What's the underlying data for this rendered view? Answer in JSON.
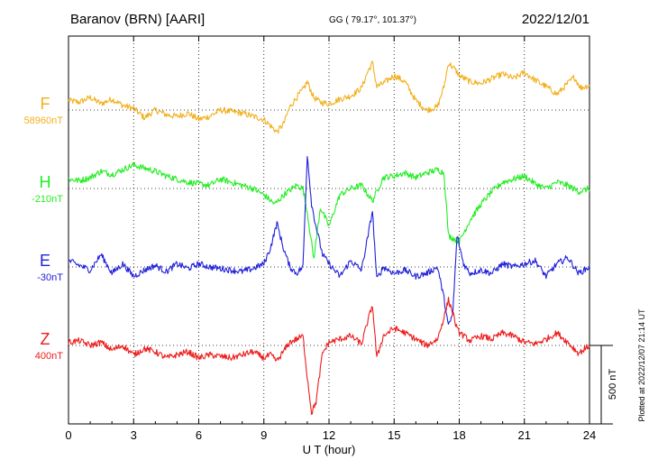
{
  "header": {
    "station": "Baranov (BRN)  [AARI]",
    "coords": "GG ( 79.17°, 101.37°)",
    "date": "2022/12/01"
  },
  "axis": {
    "xlabel": "U T (hour)",
    "ticks": [
      "0",
      "3",
      "6",
      "9",
      "12",
      "15",
      "18",
      "21",
      "24"
    ]
  },
  "scale_bar": {
    "label": "500 nT",
    "value_nT": 500
  },
  "footer": {
    "plotted": "Plotted at 2022/12/07 21:14 UT"
  },
  "chart_data": {
    "type": "line",
    "title": "Baranov (BRN)  [AARI]",
    "xlabel": "U T (hour)",
    "ylabel": "",
    "xlim": [
      0,
      24
    ],
    "x_ticks": [
      0,
      3,
      6,
      9,
      12,
      15,
      18,
      21,
      24
    ],
    "grid": true,
    "scale_bar_nT": 500,
    "series": [
      {
        "name": "F",
        "baseline_label": "58960nT",
        "color": "#f2b01e",
        "x": [
          0,
          0.5,
          1,
          1.5,
          2,
          2.5,
          3,
          3.5,
          4,
          4.5,
          5,
          5.5,
          6,
          6.5,
          7,
          7.5,
          8,
          8.5,
          9,
          9.3,
          9.6,
          9.9,
          10.2,
          10.5,
          10.8,
          11,
          11.3,
          11.6,
          12,
          12.5,
          13,
          13.5,
          13.8,
          14,
          14.2,
          14.5,
          15,
          15.5,
          16,
          16.5,
          17,
          17.3,
          17.5,
          17.8,
          18,
          18.5,
          19,
          19.5,
          20,
          20.5,
          21,
          21.5,
          22,
          22.5,
          23,
          23.3,
          23.6,
          24
        ],
        "values": [
          60,
          50,
          80,
          40,
          70,
          30,
          10,
          -50,
          0,
          -30,
          -40,
          -20,
          -60,
          -40,
          0,
          -10,
          -20,
          -40,
          -60,
          -100,
          -140,
          -90,
          20,
          80,
          130,
          180,
          80,
          50,
          40,
          70,
          90,
          140,
          250,
          300,
          150,
          170,
          220,
          180,
          60,
          0,
          20,
          150,
          300,
          260,
          220,
          180,
          170,
          200,
          230,
          200,
          240,
          190,
          150,
          100,
          170,
          210,
          140,
          160
        ]
      },
      {
        "name": "H",
        "baseline_label": "-210nT",
        "color": "#22ee22",
        "x": [
          0,
          0.5,
          1,
          1.5,
          2,
          2.5,
          3,
          3.5,
          4,
          4.5,
          5,
          5.5,
          6,
          6.5,
          7,
          7.5,
          8,
          8.5,
          9,
          9.5,
          10,
          10.5,
          10.8,
          11,
          11.3,
          11.6,
          12,
          12.5,
          13,
          13.5,
          14,
          14.5,
          15,
          15.5,
          16,
          16.5,
          17,
          17.3,
          17.5,
          18,
          18.5,
          19,
          19.5,
          20,
          20.5,
          21,
          21.5,
          22,
          22.5,
          23,
          23.5,
          24
        ],
        "values": [
          60,
          50,
          70,
          110,
          90,
          120,
          150,
          130,
          110,
          80,
          60,
          40,
          30,
          20,
          60,
          40,
          20,
          0,
          -40,
          -100,
          -30,
          20,
          0,
          -150,
          -450,
          -120,
          -240,
          -40,
          0,
          20,
          -80,
          70,
          80,
          100,
          70,
          100,
          120,
          100,
          -300,
          -340,
          -200,
          -100,
          -20,
          40,
          60,
          80,
          30,
          0,
          40,
          20,
          -20,
          0
        ]
      },
      {
        "name": "E",
        "baseline_label": "-30nT",
        "color": "#2020dd",
        "x": [
          0,
          0.5,
          1,
          1.5,
          2,
          2.5,
          3,
          3.5,
          4,
          4.5,
          5,
          5.5,
          6,
          6.5,
          7,
          7.5,
          8,
          8.5,
          9,
          9.3,
          9.6,
          9.9,
          10.2,
          10.5,
          10.8,
          11,
          11.2,
          11.4,
          11.7,
          12,
          12.5,
          13,
          13.5,
          13.8,
          14,
          14.2,
          14.5,
          15,
          15.5,
          16,
          16.5,
          17,
          17.3,
          17.5,
          17.7,
          17.9,
          18.2,
          18.5,
          19,
          19.5,
          20,
          20.5,
          21,
          21.5,
          22,
          22.5,
          23,
          23.5,
          24
        ],
        "values": [
          40,
          10,
          -20,
          80,
          -40,
          20,
          -60,
          -20,
          10,
          -30,
          20,
          -10,
          20,
          0,
          -10,
          -20,
          -30,
          -10,
          20,
          120,
          280,
          120,
          0,
          -40,
          0,
          720,
          400,
          260,
          80,
          20,
          -60,
          40,
          -20,
          200,
          360,
          -80,
          0,
          -40,
          -20,
          -60,
          -40,
          0,
          -200,
          -380,
          -300,
          200,
          20,
          -40,
          -20,
          -40,
          20,
          0,
          20,
          40,
          -60,
          20,
          60,
          -40,
          0
        ]
      },
      {
        "name": "Z",
        "baseline_label": "400nT",
        "color": "#ee1c1c",
        "x": [
          0,
          0.5,
          1,
          1.5,
          2,
          2.5,
          3,
          3.5,
          4,
          4.5,
          5,
          5.5,
          6,
          6.5,
          7,
          7.5,
          8,
          8.5,
          9,
          9.3,
          9.6,
          9.9,
          10.2,
          10.5,
          10.8,
          11,
          11.2,
          11.4,
          11.7,
          12,
          12.5,
          13,
          13.5,
          13.8,
          14,
          14.2,
          14.5,
          15,
          15.5,
          16,
          16.5,
          17,
          17.3,
          17.5,
          17.7,
          17.9,
          18.2,
          18.5,
          19,
          19.5,
          20,
          20.5,
          21,
          21.5,
          22,
          22.5,
          23,
          23.5,
          24
        ],
        "values": [
          20,
          30,
          0,
          20,
          -30,
          0,
          -60,
          -20,
          -40,
          -80,
          -60,
          -40,
          -80,
          -60,
          -70,
          -80,
          -60,
          -40,
          -80,
          -60,
          -100,
          -40,
          20,
          40,
          60,
          -200,
          -430,
          -360,
          -50,
          20,
          40,
          60,
          10,
          160,
          260,
          -80,
          60,
          110,
          80,
          40,
          0,
          40,
          180,
          290,
          210,
          100,
          60,
          30,
          60,
          40,
          80,
          60,
          20,
          10,
          40,
          80,
          20,
          -50,
          0
        ]
      }
    ]
  }
}
